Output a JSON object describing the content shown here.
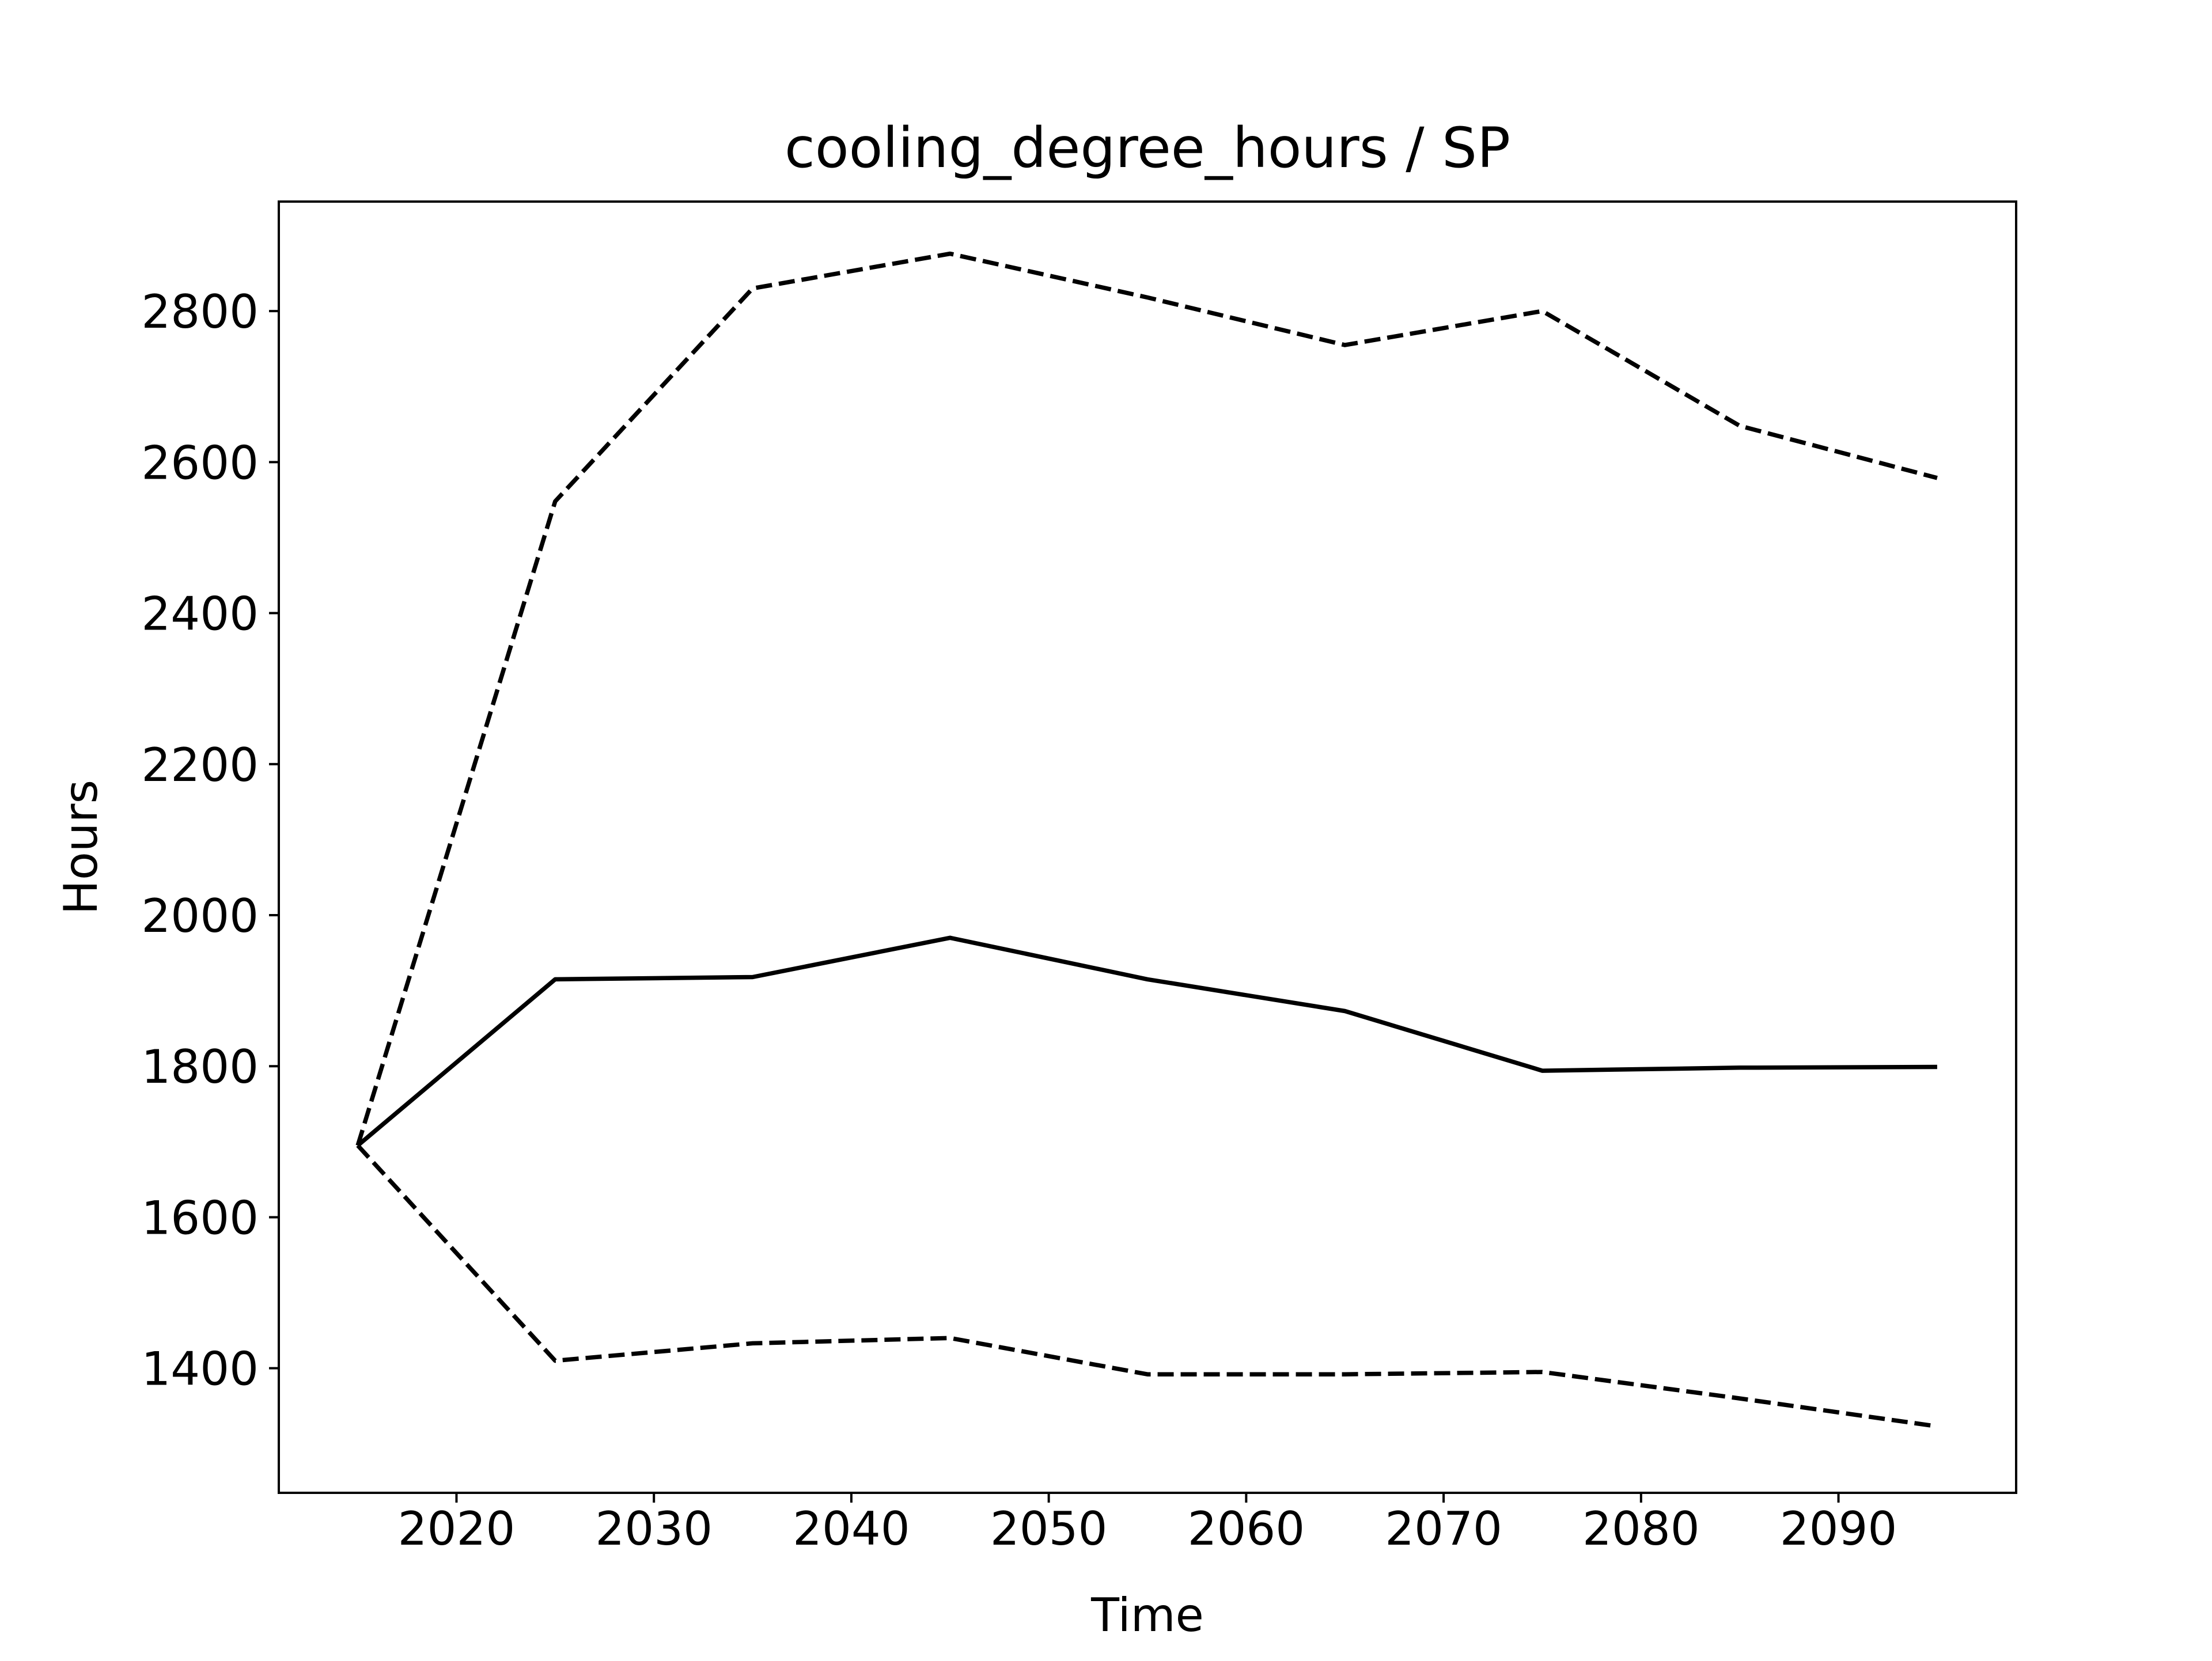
{
  "chart_data": {
    "type": "line",
    "title": "cooling_degree_hours / SP",
    "xlabel": "Time",
    "ylabel": "Hours",
    "xlim": [
      2011,
      2099
    ],
    "ylim": [
      1235,
      2945
    ],
    "x_ticks": [
      2020,
      2030,
      2040,
      2050,
      2060,
      2070,
      2080,
      2090
    ],
    "y_ticks": [
      1400,
      1600,
      1800,
      2000,
      2200,
      2400,
      2600,
      2800
    ],
    "grid": false,
    "legend": "none",
    "series": [
      {
        "style": "solid",
        "color": "#000000",
        "x": [
          2015,
          2025,
          2035,
          2045,
          2055,
          2065,
          2075,
          2085,
          2095
        ],
        "values": [
          1695,
          1915,
          1918,
          1970,
          1915,
          1873,
          1794,
          1798,
          1799
        ]
      },
      {
        "style": "dashed",
        "color": "#000000",
        "x": [
          2015,
          2025,
          2035,
          2045,
          2055,
          2065,
          2075,
          2085,
          2095
        ],
        "values": [
          1695,
          2548,
          2830,
          2876,
          2818,
          2755,
          2800,
          2648,
          2579
        ]
      },
      {
        "style": "dashed",
        "color": "#000000",
        "x": [
          2015,
          2025,
          2035,
          2045,
          2055,
          2065,
          2075,
          2085,
          2095
        ],
        "values": [
          1695,
          1410,
          1433,
          1440,
          1392,
          1392,
          1395,
          1360,
          1323
        ]
      }
    ]
  }
}
